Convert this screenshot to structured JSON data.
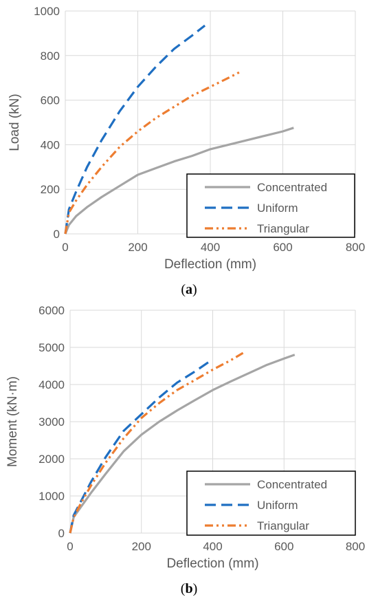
{
  "captions": {
    "a_letter": "a",
    "b_letter": "b"
  },
  "chart_data": [
    {
      "type": "line",
      "xlabel": "Deflection (mm)",
      "ylabel": "Load (kN)",
      "xlim": [
        0,
        800
      ],
      "ylim": [
        0,
        1000
      ],
      "xticks": [
        0,
        200,
        400,
        600,
        800
      ],
      "yticks": [
        0,
        200,
        400,
        600,
        800,
        1000
      ],
      "grid": true,
      "legend_position": "bottom-right",
      "series": [
        {
          "name": "Concentrated",
          "color": "#a5a5a5",
          "style": "solid",
          "x": [
            0,
            10,
            30,
            60,
            100,
            150,
            200,
            250,
            300,
            350,
            400,
            450,
            500,
            550,
            600,
            630
          ],
          "y": [
            0,
            40,
            80,
            120,
            165,
            215,
            265,
            295,
            325,
            350,
            380,
            400,
            420,
            440,
            460,
            476
          ]
        },
        {
          "name": "Uniform",
          "color": "#1f6fc2",
          "style": "dash",
          "x": [
            0,
            10,
            30,
            60,
            100,
            150,
            200,
            250,
            300,
            350,
            385
          ],
          "y": [
            0,
            110,
            190,
            300,
            420,
            550,
            660,
            750,
            830,
            890,
            935
          ]
        },
        {
          "name": "Triangular",
          "color": "#ed7d31",
          "style": "dashdotdot",
          "x": [
            0,
            10,
            30,
            60,
            100,
            150,
            200,
            250,
            300,
            350,
            400,
            450,
            480
          ],
          "y": [
            0,
            95,
            150,
            220,
            300,
            390,
            460,
            520,
            570,
            620,
            660,
            700,
            725
          ]
        }
      ]
    },
    {
      "type": "line",
      "xlabel": "Deflection (mm)",
      "ylabel": "Moment (kN·m)",
      "xlim": [
        0,
        800
      ],
      "ylim": [
        0,
        6000
      ],
      "xticks": [
        0,
        200,
        400,
        600,
        800
      ],
      "yticks": [
        0,
        1000,
        2000,
        3000,
        4000,
        5000,
        6000
      ],
      "grid": true,
      "legend_position": "bottom-right",
      "series": [
        {
          "name": "Concentrated",
          "color": "#a5a5a5",
          "style": "solid",
          "x": [
            0,
            10,
            30,
            60,
            100,
            150,
            200,
            250,
            300,
            350,
            400,
            450,
            500,
            550,
            600,
            630
          ],
          "y": [
            0,
            430,
            700,
            1100,
            1600,
            2200,
            2650,
            3000,
            3300,
            3580,
            3850,
            4080,
            4300,
            4520,
            4700,
            4800
          ]
        },
        {
          "name": "Uniform",
          "color": "#1f6fc2",
          "style": "dash",
          "x": [
            0,
            10,
            30,
            60,
            100,
            150,
            200,
            250,
            300,
            350,
            400
          ],
          "y": [
            0,
            480,
            850,
            1400,
            2050,
            2750,
            3200,
            3650,
            4050,
            4350,
            4680
          ]
        },
        {
          "name": "Triangular",
          "color": "#ed7d31",
          "style": "dashdotdot",
          "x": [
            0,
            10,
            30,
            60,
            100,
            150,
            200,
            250,
            300,
            350,
            400,
            450,
            485
          ],
          "y": [
            0,
            420,
            800,
            1300,
            1900,
            2550,
            3100,
            3500,
            3850,
            4120,
            4400,
            4650,
            4850
          ]
        }
      ]
    }
  ]
}
